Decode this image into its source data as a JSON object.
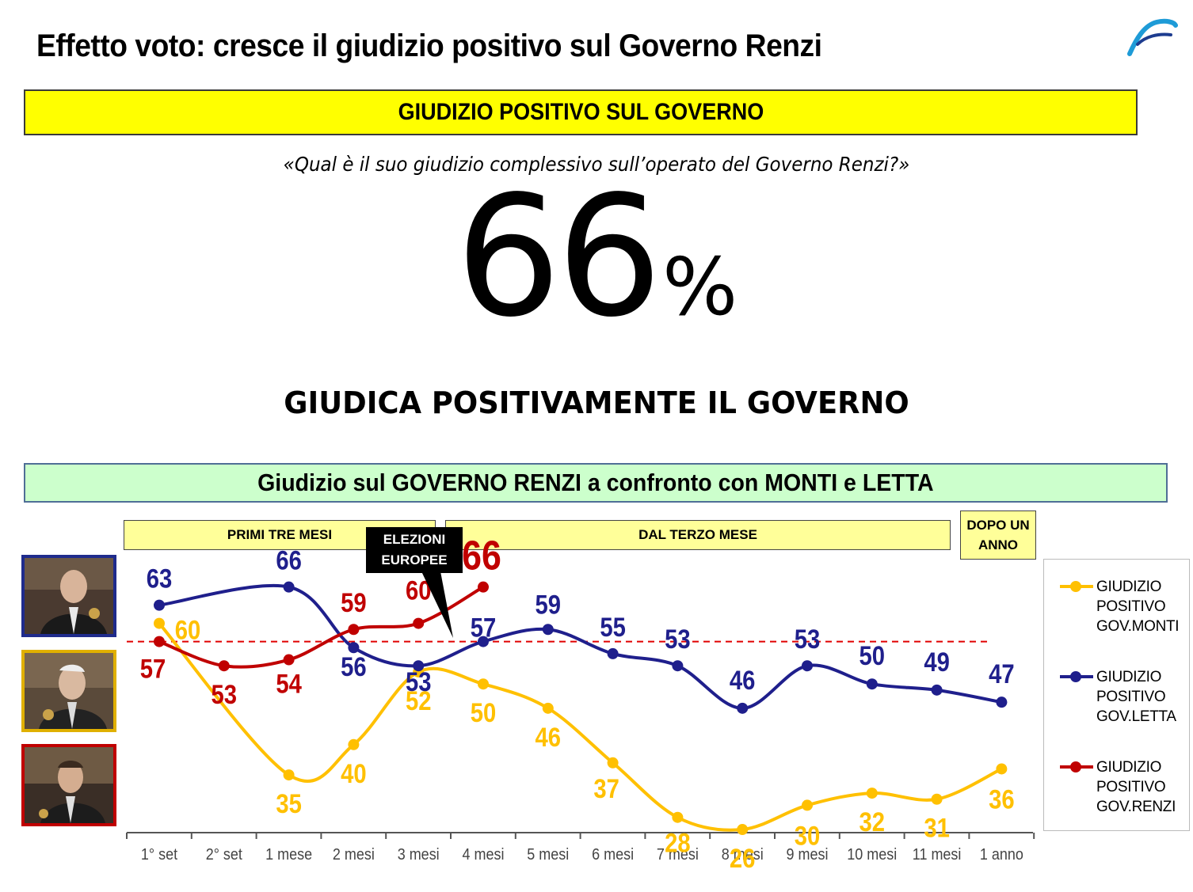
{
  "page": {
    "title": "Effetto voto: cresce il giudizio positivo sul Governo Renzi",
    "box1_label": "GIUDIZIO POSITIVO SUL GOVERNO",
    "question": "«Qual è il suo giudizio complessivo sull’operato del Governo Renzi?»",
    "big_number": "66",
    "big_percent": "%",
    "subheadline": "GIUDICA POSITIVAMENTE IL GOVERNO",
    "box2_label": "Giudizio sul GOVERNO RENZI a confronto con MONTI e LETTA",
    "phase1": "PRIMI TRE MESI",
    "phase2": "DAL TERZO MESE",
    "phase3_line1": "DOPO UN",
    "phase3_line2": "ANNO",
    "callout_line1": "ELEZIONI",
    "callout_line2": "EUROPEE",
    "legend": [
      {
        "line1": "GIUDIZIO",
        "line2": "POSITIVO",
        "line3": "GOV.MONTI",
        "color": "#ffc000"
      },
      {
        "line1": "GIUDIZIO",
        "line2": "POSITIVO",
        "line3": "GOV.LETTA",
        "color": "#1f1f8c"
      },
      {
        "line1": "GIUDIZIO",
        "line2": "POSITIVO",
        "line3": "GOV.RENZI",
        "color": "#c00000"
      }
    ]
  },
  "chart_data": {
    "type": "line",
    "categories": [
      "1° set",
      "2° set",
      "1 mese",
      "2 mesi",
      "3 mesi",
      "4 mesi",
      "5 mesi",
      "6 mesi",
      "7 mesi",
      "8 mesi",
      "9 mesi",
      "10 mesi",
      "11 mesi",
      "1 anno"
    ],
    "series": [
      {
        "name": "GIUDIZIO POSITIVO GOV.MONTI",
        "color": "#ffc000",
        "values": [
          60,
          null,
          35,
          40,
          52,
          50,
          46,
          37,
          28,
          26,
          30,
          32,
          31,
          36
        ]
      },
      {
        "name": "GIUDIZIO POSITIVO GOV.LETTA",
        "color": "#1f1f8c",
        "values": [
          63,
          null,
          66,
          56,
          53,
          57,
          59,
          55,
          53,
          46,
          53,
          50,
          49,
          47
        ]
      },
      {
        "name": "GIUDIZIO POSITIVO GOV.RENZI",
        "color": "#c00000",
        "values": [
          57,
          53,
          54,
          59,
          60,
          66,
          null,
          null,
          null,
          null,
          null,
          null,
          null,
          null
        ]
      }
    ],
    "reference_line": {
      "value": 57,
      "style": "dashed",
      "color": "#e00000"
    },
    "highlighted_value": {
      "series": "GIUDIZIO POSITIVO GOV.RENZI",
      "category": "4 mesi",
      "value": 66
    },
    "grid": false,
    "legend_position": "right"
  }
}
